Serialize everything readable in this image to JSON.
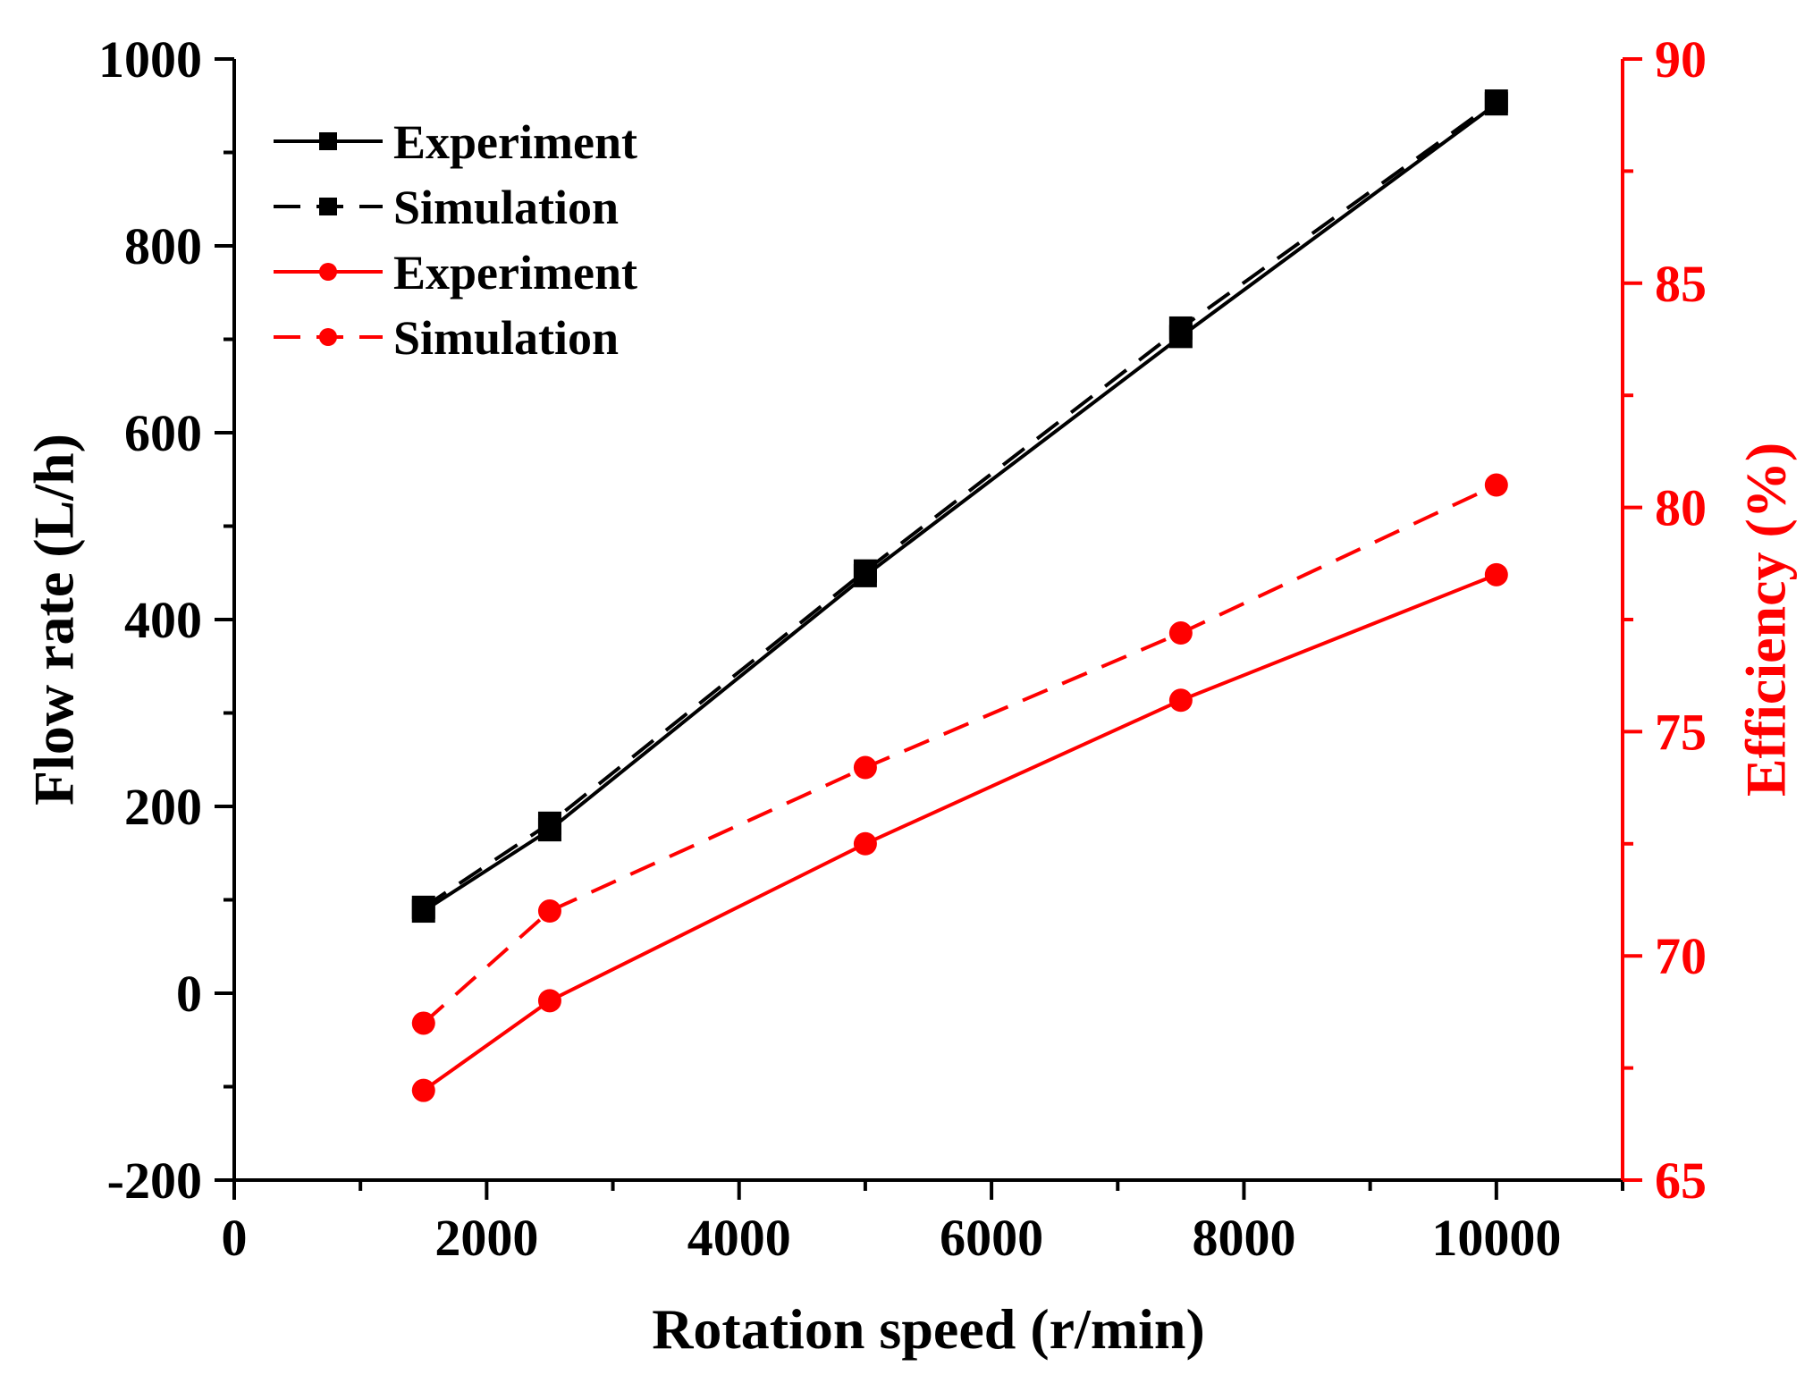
{
  "chart_data": {
    "type": "line",
    "xlabel": "Rotation speed (r/min)",
    "ylabel_left": "Flow rate (L/h)",
    "ylabel_right": "Efficiency (%)",
    "xlim": [
      0,
      11000
    ],
    "ylim_left": [
      -200,
      1000
    ],
    "ylim_right": [
      65,
      90
    ],
    "x_ticks": [
      0,
      2000,
      4000,
      6000,
      8000,
      10000
    ],
    "y_left_ticks": [
      -200,
      0,
      200,
      400,
      600,
      800,
      1000
    ],
    "y_right_ticks": [
      65,
      70,
      75,
      80,
      85,
      90
    ],
    "grid": false,
    "legend_position": "top-left",
    "colors": {
      "flow": "#000000",
      "efficiency": "#ff0000"
    },
    "x": [
      1500,
      2500,
      5000,
      7500,
      10000
    ],
    "series": [
      {
        "name": "Experiment",
        "axis": "left",
        "color": "#000000",
        "dash": false,
        "marker": "square",
        "values": [
          88,
          175,
          447,
          703,
          952
        ]
      },
      {
        "name": "Simulation",
        "axis": "left",
        "color": "#000000",
        "dash": true,
        "marker": "square",
        "values": [
          92,
          182,
          452,
          712,
          955
        ]
      },
      {
        "name": "Experiment",
        "axis": "right",
        "color": "#ff0000",
        "dash": false,
        "marker": "circle",
        "values": [
          67.0,
          69.0,
          72.5,
          75.7,
          78.5
        ]
      },
      {
        "name": "Simulation",
        "axis": "right",
        "color": "#ff0000",
        "dash": true,
        "marker": "circle",
        "values": [
          68.5,
          71.0,
          74.2,
          77.2,
          80.5
        ]
      }
    ]
  }
}
